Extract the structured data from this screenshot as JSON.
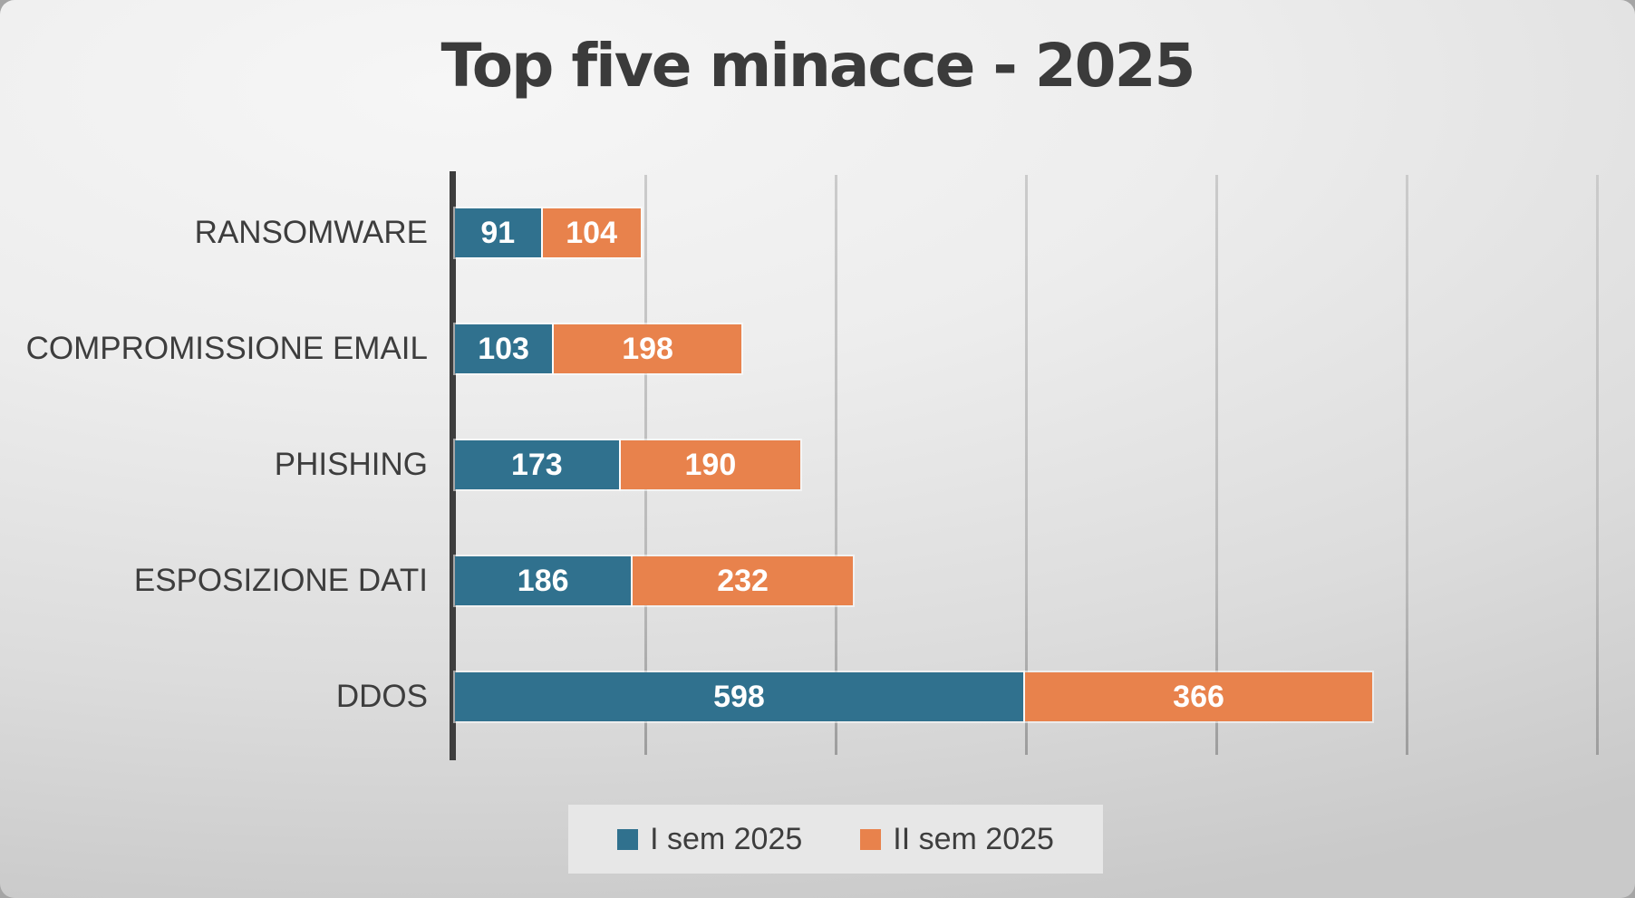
{
  "colors": {
    "series1_blue": "#30718E",
    "series2_orange": "#E8824C",
    "title_text": "#3B3B3B",
    "category_text": "#3D3D3D",
    "axis_line": "#3D3D3D",
    "gridline": "#BDBDBD",
    "bar_value_text": "#FFFFFF",
    "legend_panel": "#E7E7E7",
    "slide_background": "#E0E0E0"
  },
  "chart_data": {
    "type": "bar",
    "orientation": "horizontal",
    "stacked": true,
    "title": "Top five minacce - 2025",
    "categories": [
      "RANSOMWARE",
      "COMPROMISSIONE EMAIL",
      "PHISHING",
      "ESPOSIZIONE DATI",
      "DDOS"
    ],
    "series": [
      {
        "name": "I sem 2025",
        "color": "#30718E",
        "values": [
          91,
          103,
          173,
          186,
          598
        ]
      },
      {
        "name": "II sem 2025",
        "color": "#E8824C",
        "values": [
          104,
          198,
          190,
          232,
          366
        ]
      }
    ],
    "totals": [
      195,
      301,
      363,
      418,
      964
    ],
    "xlabel": "",
    "ylabel": "",
    "xlim": [
      0,
      1200
    ],
    "gridline_interval": 200,
    "grid": true,
    "axis_tick_labels_visible": false,
    "data_labels": true,
    "legend_position": "bottom"
  },
  "legend": {
    "items": [
      {
        "label": "I sem 2025",
        "color": "#30718E"
      },
      {
        "label": "II sem 2025",
        "color": "#E8824C"
      }
    ]
  }
}
